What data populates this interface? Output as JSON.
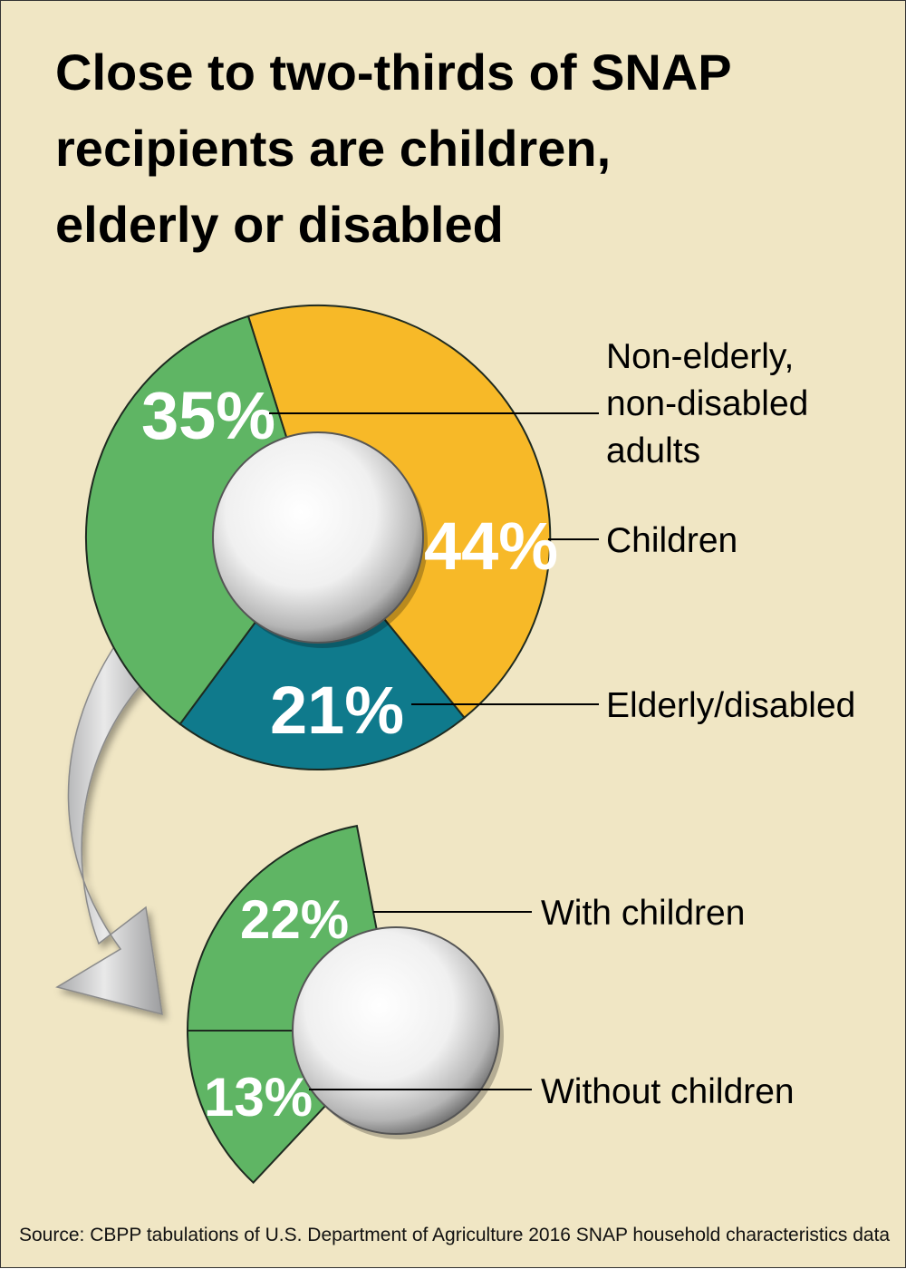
{
  "title_lines": [
    "Close to two-thirds of SNAP",
    "recipients are children,",
    "elderly or disabled"
  ],
  "source": "Source: CBPP tabulations of U.S. Department of Agriculture 2016 SNAP household characteristics data",
  "chart_data": [
    {
      "type": "pie",
      "categories": [
        "Children",
        "Elderly/disabled",
        "Non-elderly, non-disabled adults"
      ],
      "values": [
        44,
        21,
        35
      ],
      "value_labels": [
        "44%",
        "21%",
        "35%"
      ],
      "legend_labels": [
        [
          "Children"
        ],
        [
          "Elderly/disabled"
        ],
        [
          "Non-elderly,",
          "non-disabled",
          "adults"
        ]
      ],
      "colors": [
        "#f7b928",
        "#0f7a8c",
        "#5fb564"
      ],
      "style": "donut"
    },
    {
      "type": "pie",
      "categories": [
        "With children",
        "Without children"
      ],
      "values": [
        22,
        13
      ],
      "value_labels": [
        "22%",
        "13%"
      ],
      "legend_labels": [
        [
          "With children"
        ],
        [
          "Without children"
        ]
      ],
      "colors": [
        "#5fb564",
        "#5fb564"
      ],
      "style": "partial-donut breakdown of the 35% segment"
    }
  ]
}
